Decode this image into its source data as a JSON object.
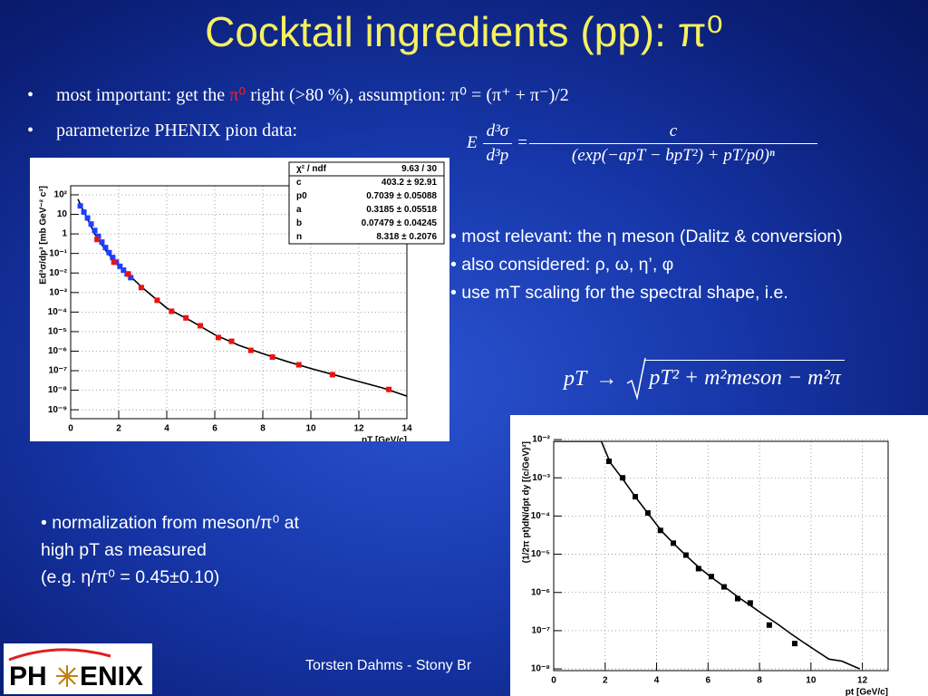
{
  "header": {
    "title": "Cocktail ingredients (pp): π⁰"
  },
  "bullets": [
    {
      "marker": "•",
      "parts": [
        "most important: get the ",
        "π⁰",
        " right (>80 %), assumption: π⁰ = (π⁺ + π⁻)/2"
      ]
    },
    {
      "marker": "•",
      "parts": [
        "parameterize PHENIX pion data:"
      ]
    }
  ],
  "formula_fit": {
    "lhs_pre": "E",
    "lhs_num": "d³σ",
    "lhs_den": "d³p",
    "eq": "=",
    "num": "c",
    "den": "(exp(−apT − bpT²) + pT/p0)ⁿ"
  },
  "right_notes": [
    "• most relevant: the η meson (Dalitz & conversion)",
    "• also considered: ρ, ω, η’, φ",
    "• use mT scaling for the spectral shape, i.e."
  ],
  "formula_mt": {
    "lhs": "pT",
    "arrow": "→",
    "radicand": "pT² + m²meson − m²π"
  },
  "normalization_note": [
    "• normalization from meson/π⁰ at",
    "high pT as measured",
    "(e.g. η/π⁰ = 0.45±0.10)"
  ],
  "footer": {
    "author": "Torsten Dahms - Stony Br",
    "logo": [
      "PH",
      "ENIX"
    ]
  },
  "chart_data": [
    {
      "type": "scatter",
      "log_y": true,
      "grid": true,
      "x_label": "pT [GeV/c]",
      "y_label": "Ed³σ/dp³ [mb GeV⁻² c³]",
      "xlim": [
        0,
        14
      ],
      "xticks": [
        0,
        2,
        4,
        6,
        8,
        10,
        12,
        14
      ],
      "ylim": [
        3.5e-10,
        290
      ],
      "yticks": [
        {
          "value": 1e-09,
          "label": "10⁻⁹"
        },
        {
          "value": 1e-08,
          "label": "10⁻⁸"
        },
        {
          "value": 1e-07,
          "label": "10⁻⁷"
        },
        {
          "value": 1e-06,
          "label": "10⁻⁶"
        },
        {
          "value": 1e-05,
          "label": "10⁻⁵"
        },
        {
          "value": 0.0001,
          "label": "10⁻⁴"
        },
        {
          "value": 0.001,
          "label": "10⁻³"
        },
        {
          "value": 0.01,
          "label": "10⁻²"
        },
        {
          "value": 0.1,
          "label": "10⁻¹"
        },
        1,
        10,
        {
          "value": 100,
          "label": "10²"
        }
      ],
      "stats": {
        "rows": [
          [
            "χ² / ndf",
            "9.63 / 30"
          ],
          [
            "c",
            "403.2 ± 92.91"
          ],
          [
            "p0",
            "0.7039 ± 0.05088"
          ],
          [
            "a",
            "0.3185 ± 0.05518"
          ],
          [
            "b",
            "0.07479 ± 0.04245"
          ],
          [
            "n",
            "8.318 ± 0.2076"
          ]
        ]
      },
      "series": [
        {
          "style": "line",
          "color": "#000000",
          "x": [
            0.3,
            0.5,
            1,
            1.5,
            2,
            2.5,
            3,
            4,
            5,
            6,
            7,
            8,
            9,
            10,
            11,
            12,
            13,
            14
          ],
          "values": [
            60,
            18,
            1.0,
            0.12,
            0.022,
            0.0065,
            0.0017,
            0.00016,
            3.6e-05,
            7e-06,
            2e-06,
            7.5e-07,
            3e-07,
            1.3e-07,
            6e-08,
            2.8e-08,
            1.3e-08,
            5e-09
          ]
        },
        {
          "style": "marker",
          "color": "#1f3fff",
          "x": [
            0.4,
            0.55,
            0.7,
            0.85,
            1.0,
            1.15,
            1.3,
            1.45,
            1.6,
            1.75,
            1.9,
            2.05,
            2.2,
            2.35,
            2.5
          ],
          "values": [
            27,
            13,
            6.5,
            3.2,
            1.5,
            0.75,
            0.38,
            0.2,
            0.11,
            0.062,
            0.036,
            0.022,
            0.014,
            0.0089,
            0.0058
          ]
        },
        {
          "style": "marker",
          "color": "#ee1111",
          "x": [
            1.1,
            1.8,
            2.4,
            2.94,
            3.6,
            4.2,
            4.8,
            5.4,
            6.15,
            6.7,
            7.5,
            8.4,
            9.5,
            10.9,
            13.25
          ],
          "values": [
            0.52,
            0.036,
            0.0089,
            0.0018,
            0.0004,
            0.00011,
            5e-05,
            2e-05,
            5e-06,
            3.2e-06,
            1.1e-06,
            5e-07,
            2e-07,
            6.3e-08,
            1.1e-08
          ]
        }
      ]
    },
    {
      "type": "scatter",
      "log_y": true,
      "grid": true,
      "x_label": "pt [GeV/c]",
      "y_label": "(1/2π pt)dN/dpt dy [(c/GeV)²]",
      "xlim": [
        0,
        13
      ],
      "xticks": [
        0,
        2,
        4,
        6,
        8,
        10,
        12
      ],
      "ylim": [
        9e-09,
        0.009
      ],
      "yticks": [
        {
          "value": 1e-08,
          "label": "10⁻⁸"
        },
        {
          "value": 1e-07,
          "label": "10⁻⁷"
        },
        {
          "value": 1e-06,
          "label": "10⁻⁶"
        },
        {
          "value": 1e-05,
          "label": "10⁻⁵"
        },
        {
          "value": 0.0001,
          "label": "10⁻⁴"
        },
        {
          "value": 0.001,
          "label": "10⁻³"
        },
        {
          "value": 0.01,
          "label": "10⁻²"
        }
      ],
      "series": [
        {
          "style": "line",
          "color": "#000000",
          "x": [
            0,
            1.85,
            2.2,
            2.7,
            3.2,
            3.7,
            4.2,
            4.7,
            5.2,
            5.7,
            6.2,
            6.7,
            7.2,
            7.7,
            8.2,
            8.7,
            9.2,
            9.7,
            10.2,
            10.7,
            11.2,
            11.9
          ],
          "values": [
            0.009,
            0.009,
            0.0025,
            0.0009,
            0.0003,
            0.00011,
            4e-05,
            1.8e-05,
            8.5e-06,
            4.2e-06,
            2.3e-06,
            1.3e-06,
            7.3e-07,
            4.3e-07,
            2.5e-07,
            1.5e-07,
            8.5e-08,
            5e-08,
            3e-08,
            1.8e-08,
            1.6e-08,
            1e-08
          ]
        },
        {
          "style": "marker",
          "color": "#000000",
          "x": [
            2.15,
            2.68,
            3.17,
            3.66,
            4.15,
            4.65,
            5.14,
            5.63,
            6.13,
            6.62,
            7.15,
            7.64,
            8.38,
            9.37
          ],
          "values": [
            0.0027,
            0.001,
            0.00032,
            0.00012,
            4.2e-05,
            1.95e-05,
            9.5e-06,
            4.2e-06,
            2.6e-06,
            1.4e-06,
            6.9e-07,
            5.3e-07,
            1.4e-07,
            4.6e-08
          ]
        }
      ]
    }
  ]
}
